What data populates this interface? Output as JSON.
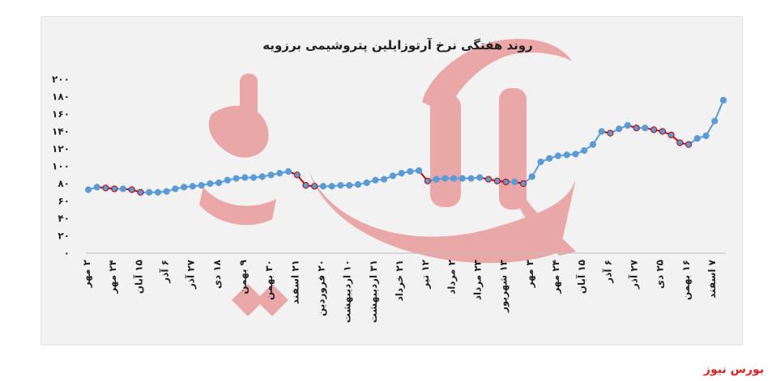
{
  "chart_data": {
    "type": "line",
    "title": "روند هفتگی نرخ آرتوزایلین پتروشیمی برزویه",
    "xlabel": "",
    "ylabel": "",
    "ylim": [
      0,
      200
    ],
    "yticks": [
      "۰",
      "۲۰",
      "۴۰",
      "۶۰",
      "۸۰",
      "۱۰۰",
      "۱۲۰",
      "۱۴۰",
      "۱۶۰",
      "۱۸۰",
      "۲۰۰"
    ],
    "grid": false,
    "x_tick_labels": [
      "۲ مهر",
      "۲۴ مهر",
      "۱۵ آبان",
      "۶ آذر",
      "۲۷ آذر",
      "۱۸ دی",
      "۹ بهمن",
      "۳۰ بهمن",
      "۲۱ اسفند",
      "۲۰ فروردین",
      "۱۰ اردیبهشت",
      "۳۱ اردیبهشت",
      "۲۱ خرداد",
      "۱۲ تیر",
      "۲ مرداد",
      "۲۳ مرداد",
      "۱۳ شهریور",
      "۳ مهر",
      "۲۴ مهر",
      "۱۵ آبان",
      "۶ آذر",
      "۲۷ آذر",
      "۲۵ دی",
      "۱۶ بهمن",
      "۷ اسفند"
    ],
    "series": [
      {
        "color": "#5b9bd5",
        "down_color": "#c00000",
        "values": [
          73,
          76,
          75,
          74,
          74,
          73,
          70,
          70,
          70,
          71,
          74,
          76,
          77,
          78,
          80,
          81,
          84,
          86,
          87,
          87,
          88,
          90,
          92,
          94,
          90,
          78,
          77,
          77,
          77,
          78,
          78,
          79,
          81,
          84,
          85,
          89,
          92,
          94,
          95,
          83,
          85,
          86,
          86,
          86,
          86,
          87,
          85,
          83,
          82,
          82,
          80,
          88,
          105,
          109,
          112,
          113,
          114,
          118,
          125,
          140,
          138,
          143,
          147,
          144,
          144,
          142,
          140,
          136,
          127,
          125,
          132,
          135,
          152,
          176
        ]
      }
    ]
  },
  "watermark": {
    "text": "بورس نیوز",
    "color": "#e06060"
  },
  "footer": {
    "brand": "بورس نیوز"
  }
}
